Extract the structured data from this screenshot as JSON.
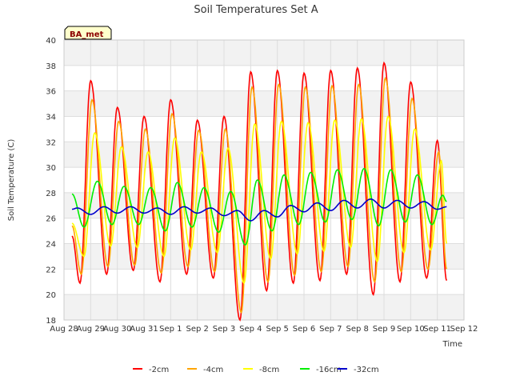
{
  "chart_data": {
    "type": "line",
    "title": "Soil Temperatures Set A",
    "xlabel": "Time",
    "ylabel": "Soil Temperature (C)",
    "badge": "BA_met",
    "ylim": [
      18,
      40
    ],
    "xlim": [
      0,
      15
    ],
    "y_ticks": [
      "18",
      "20",
      "22",
      "24",
      "26",
      "28",
      "30",
      "32",
      "34",
      "36",
      "38",
      "40"
    ],
    "x_ticks": [
      "Aug 28",
      "Aug 29",
      "Aug 30",
      "Aug 31",
      "Sep 1",
      "Sep 2",
      "Sep 3",
      "Sep 4",
      "Sep 5",
      "Sep 6",
      "Sep 7",
      "Sep 8",
      "Sep 9",
      "Sep 10",
      "Sep 11",
      "Sep 12"
    ],
    "grid": true,
    "legend_position": "bottom",
    "series": [
      {
        "name": "-2cm",
        "color": "#ff0000",
        "start": 0.3,
        "end": 14.35,
        "first": 24.6,
        "extrema": [
          [
            0.6,
            20.9
          ],
          [
            1.0,
            36.8
          ],
          [
            1.6,
            21.6
          ],
          [
            2.0,
            34.7
          ],
          [
            2.6,
            21.9
          ],
          [
            3.0,
            34.0
          ],
          [
            3.6,
            21.0
          ],
          [
            4.0,
            35.3
          ],
          [
            4.6,
            21.6
          ],
          [
            5.0,
            33.7
          ],
          [
            5.6,
            21.3
          ],
          [
            6.0,
            34.0
          ],
          [
            6.6,
            18.0
          ],
          [
            7.0,
            37.5
          ],
          [
            7.6,
            20.3
          ],
          [
            8.0,
            37.6
          ],
          [
            8.6,
            20.9
          ],
          [
            9.0,
            37.4
          ],
          [
            9.6,
            21.1
          ],
          [
            10.0,
            37.6
          ],
          [
            10.6,
            21.6
          ],
          [
            11.0,
            37.8
          ],
          [
            11.6,
            20.0
          ],
          [
            12.0,
            38.2
          ],
          [
            12.6,
            21.0
          ],
          [
            13.0,
            36.7
          ],
          [
            13.6,
            21.3
          ],
          [
            14.0,
            32.1
          ],
          [
            14.35,
            21.1
          ]
        ],
        "last": 21.1
      },
      {
        "name": "-4cm",
        "color": "#ffa500",
        "start": 0.3,
        "end": 14.35,
        "first": 25.4,
        "extrema": [
          [
            0.65,
            21.6
          ],
          [
            1.05,
            35.3
          ],
          [
            1.65,
            22.2
          ],
          [
            2.05,
            33.6
          ],
          [
            2.65,
            22.3
          ],
          [
            3.05,
            33.0
          ],
          [
            3.65,
            21.7
          ],
          [
            4.05,
            34.2
          ],
          [
            4.65,
            22.2
          ],
          [
            5.05,
            32.9
          ],
          [
            5.65,
            21.8
          ],
          [
            6.05,
            33.0
          ],
          [
            6.65,
            18.6
          ],
          [
            7.05,
            36.3
          ],
          [
            7.65,
            21.0
          ],
          [
            8.05,
            36.5
          ],
          [
            8.65,
            21.5
          ],
          [
            9.05,
            36.3
          ],
          [
            9.65,
            21.8
          ],
          [
            10.05,
            36.4
          ],
          [
            10.65,
            22.2
          ],
          [
            11.05,
            36.5
          ],
          [
            11.65,
            21.0
          ],
          [
            12.05,
            37.0
          ],
          [
            12.65,
            21.8
          ],
          [
            13.05,
            35.4
          ],
          [
            13.65,
            22.0
          ],
          [
            14.05,
            31.2
          ],
          [
            14.35,
            22.0
          ]
        ],
        "last": 22.0
      },
      {
        "name": "-8cm",
        "color": "#ffff00",
        "start": 0.3,
        "end": 14.35,
        "first": 25.6,
        "extrema": [
          [
            0.75,
            23.0
          ],
          [
            1.15,
            32.7
          ],
          [
            1.75,
            23.8
          ],
          [
            2.15,
            31.6
          ],
          [
            2.75,
            23.7
          ],
          [
            3.15,
            31.2
          ],
          [
            3.75,
            23.0
          ],
          [
            4.15,
            32.3
          ],
          [
            4.75,
            23.5
          ],
          [
            5.15,
            31.2
          ],
          [
            5.75,
            23.3
          ],
          [
            6.15,
            31.5
          ],
          [
            6.75,
            20.9
          ],
          [
            7.15,
            33.4
          ],
          [
            7.75,
            22.8
          ],
          [
            8.15,
            33.6
          ],
          [
            8.75,
            23.2
          ],
          [
            9.15,
            33.5
          ],
          [
            9.75,
            23.4
          ],
          [
            10.15,
            33.7
          ],
          [
            10.75,
            23.7
          ],
          [
            11.15,
            33.8
          ],
          [
            11.75,
            22.6
          ],
          [
            12.15,
            34.0
          ],
          [
            12.75,
            23.3
          ],
          [
            13.15,
            33.0
          ],
          [
            13.75,
            23.5
          ],
          [
            14.15,
            30.5
          ],
          [
            14.35,
            24.0
          ]
        ],
        "last": 24.0
      },
      {
        "name": "-16cm",
        "color": "#00ee00",
        "start": 0.3,
        "end": 14.35,
        "first": 27.9,
        "extrema": [
          [
            0.75,
            25.3
          ],
          [
            1.25,
            28.9
          ],
          [
            1.8,
            25.5
          ],
          [
            2.25,
            28.5
          ],
          [
            2.8,
            25.5
          ],
          [
            3.25,
            28.4
          ],
          [
            3.8,
            25.0
          ],
          [
            4.25,
            28.8
          ],
          [
            4.8,
            25.3
          ],
          [
            5.25,
            28.4
          ],
          [
            5.8,
            24.9
          ],
          [
            6.25,
            28.1
          ],
          [
            6.8,
            23.9
          ],
          [
            7.25,
            29.0
          ],
          [
            7.8,
            25.0
          ],
          [
            8.25,
            29.4
          ],
          [
            8.8,
            25.5
          ],
          [
            9.25,
            29.6
          ],
          [
            9.8,
            25.7
          ],
          [
            10.25,
            29.8
          ],
          [
            10.8,
            25.9
          ],
          [
            11.25,
            29.9
          ],
          [
            11.8,
            25.4
          ],
          [
            12.25,
            29.8
          ],
          [
            12.8,
            25.7
          ],
          [
            13.25,
            29.4
          ],
          [
            13.8,
            25.5
          ],
          [
            14.2,
            27.8
          ],
          [
            14.35,
            27.3
          ]
        ],
        "last": 27.3
      },
      {
        "name": "-32cm",
        "color": "#0000cc",
        "start": 0.3,
        "end": 14.35,
        "first": 26.7,
        "extrema": [
          [
            0.5,
            26.8
          ],
          [
            1.0,
            26.3
          ],
          [
            1.5,
            26.9
          ],
          [
            2.0,
            26.4
          ],
          [
            2.5,
            26.9
          ],
          [
            3.0,
            26.4
          ],
          [
            3.5,
            26.8
          ],
          [
            4.0,
            26.3
          ],
          [
            4.5,
            26.9
          ],
          [
            5.0,
            26.4
          ],
          [
            5.5,
            26.8
          ],
          [
            6.0,
            26.2
          ],
          [
            6.5,
            26.6
          ],
          [
            7.0,
            25.8
          ],
          [
            7.5,
            26.6
          ],
          [
            8.0,
            26.1
          ],
          [
            8.5,
            27.0
          ],
          [
            9.0,
            26.5
          ],
          [
            9.5,
            27.2
          ],
          [
            10.0,
            26.6
          ],
          [
            10.5,
            27.4
          ],
          [
            11.0,
            26.8
          ],
          [
            11.5,
            27.5
          ],
          [
            12.0,
            26.8
          ],
          [
            12.5,
            27.4
          ],
          [
            13.0,
            26.8
          ],
          [
            13.5,
            27.3
          ],
          [
            14.0,
            26.7
          ],
          [
            14.35,
            26.9
          ]
        ],
        "last": 26.9
      }
    ]
  }
}
